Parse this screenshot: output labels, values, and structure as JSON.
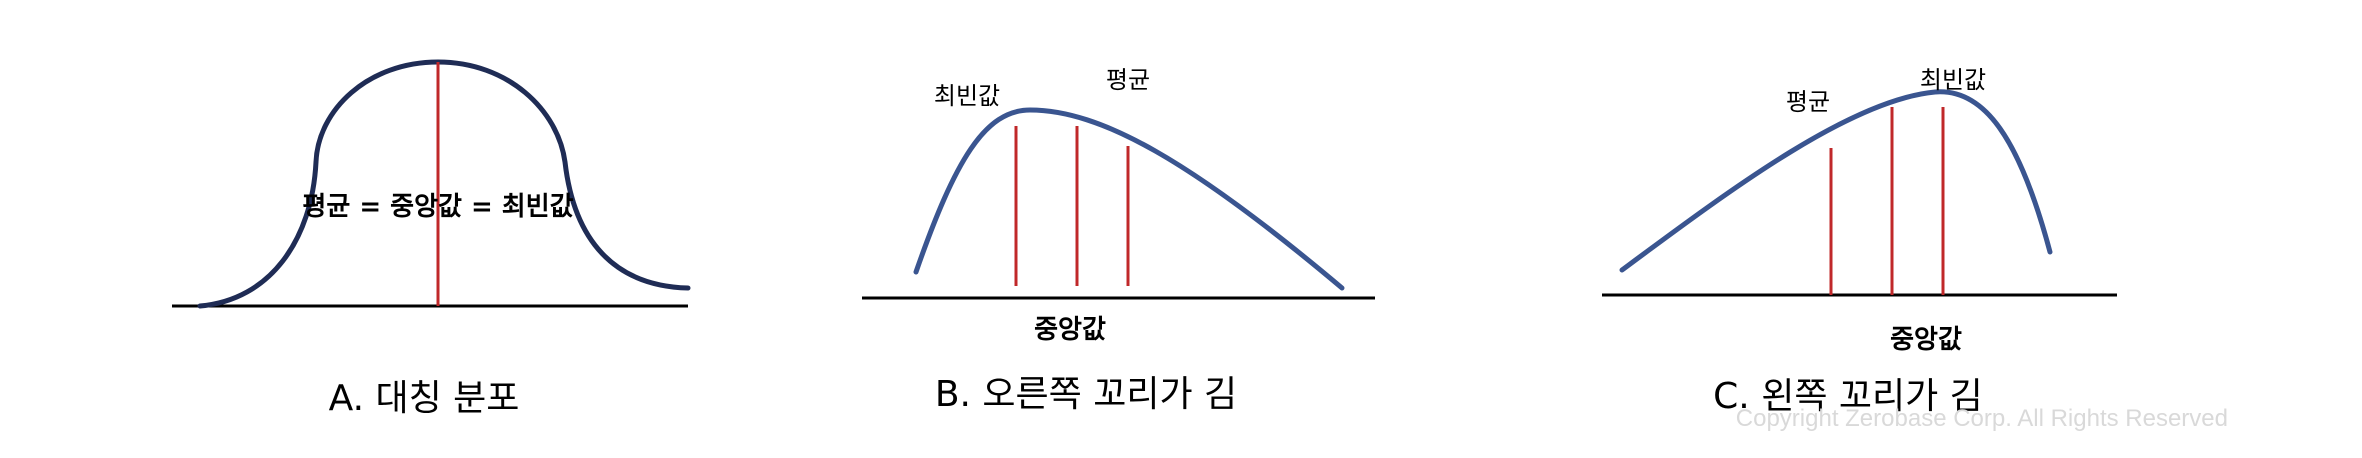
{
  "colors": {
    "curve": "#3a5590",
    "curve_dark": "#1f2c55",
    "marker": "#c0282a",
    "baseline": "#000000",
    "watermark": "#d9d9d9"
  },
  "panel_a": {
    "center_label": "평균 = 중앙값 = 최빈값",
    "caption": "A. 대칭 분포"
  },
  "panel_b": {
    "mode_label": "최빈값",
    "mean_label": "평균",
    "median_label": "중앙값",
    "caption": "B. 오른쪽 꼬리가 김"
  },
  "panel_c": {
    "mean_label": "평균",
    "mode_label": "최빈값",
    "median_label": "중앙값",
    "caption": "C. 왼쪽 꼬리가 김"
  },
  "watermark": "Copyright Zerobase Corp. All Rights Reserved"
}
